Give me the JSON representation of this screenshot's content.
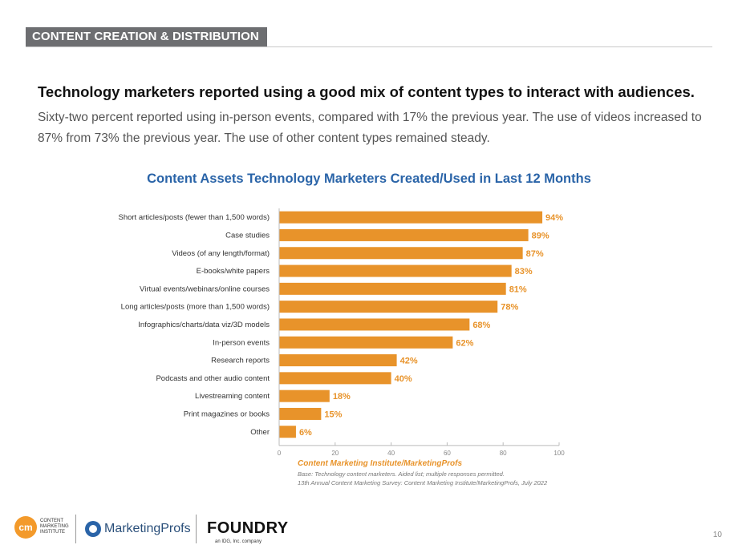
{
  "section": {
    "tab_label": "CONTENT CREATION & DISTRIBUTION"
  },
  "headline": "Technology marketers reported using a good mix of content types to interact with audiences.",
  "subtext": "Sixty-two percent reported using in-person events, compared with 17% the previous year. The use of videos increased to 87% from 73% the previous year. The use of other content types remained steady.",
  "chart_data": {
    "type": "bar",
    "orientation": "horizontal",
    "title": "Content Assets Technology Marketers Created/Used in Last 12 Months",
    "categories": [
      "Short articles/posts (fewer than 1,500 words)",
      "Case studies",
      "Videos (of any length/format)",
      "E-books/white papers",
      "Virtual events/webinars/online courses",
      "Long articles/posts (more than 1,500 words)",
      "Infographics/charts/data viz/3D models",
      "In-person events",
      "Research reports",
      "Podcasts and other audio content",
      "Livestreaming content",
      "Print magazines or books",
      "Other"
    ],
    "values": [
      94,
      89,
      87,
      83,
      81,
      78,
      68,
      62,
      42,
      40,
      18,
      15,
      6
    ],
    "value_labels": [
      "94%",
      "89%",
      "87%",
      "83%",
      "81%",
      "78%",
      "68%",
      "62%",
      "42%",
      "40%",
      "18%",
      "15%",
      "6%"
    ],
    "xlim": [
      0,
      100
    ],
    "xticks": [
      "0",
      "20",
      "40",
      "60",
      "80",
      "100"
    ],
    "grid": false,
    "bar_color": "#e8932a"
  },
  "source": {
    "title": "Content Marketing Institute/MarketingProfs",
    "base": "Base: Technology content marketers. Aided list; multiple responses permitted.",
    "survey": "13th Annual Content Marketing Survey: Content Marketing Institute/MarketingProfs, July 2022"
  },
  "footer": {
    "cmi_mark": "cm",
    "cmi_text": "CONTENT\nMARKETING\nINSTITUTE",
    "marketingprofs": "MarketingProfs",
    "foundry": "FOUNDRY",
    "foundry_sub": "an IDG, Inc. company",
    "page_number": "10"
  }
}
